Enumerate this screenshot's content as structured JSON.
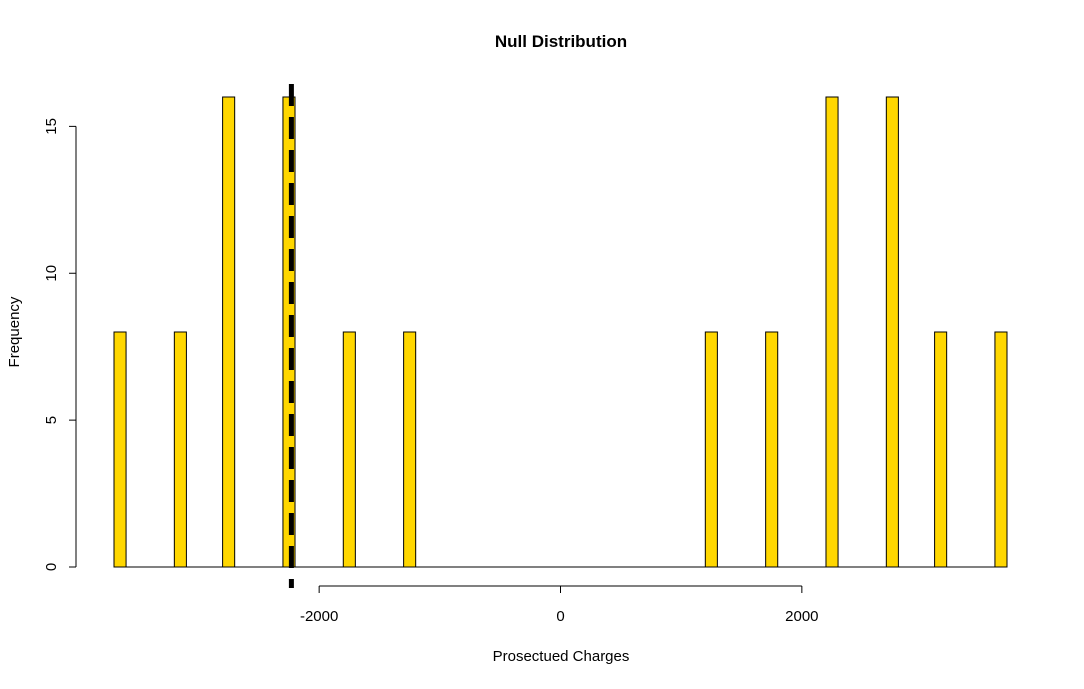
{
  "chart_data": {
    "type": "bar",
    "subtype": "histogram",
    "title": "Null Distribution",
    "xlabel": "Prosectued Charges",
    "ylabel": "Frequency",
    "xlim": [
      -3700,
      3700
    ],
    "ylim": [
      0,
      16
    ],
    "x_ticks": [
      -2000,
      0,
      2000
    ],
    "x_tick_labels": [
      "-2000",
      "0",
      "2000"
    ],
    "y_ticks": [
      0,
      5,
      10,
      15
    ],
    "y_tick_labels": [
      "0",
      "5",
      "10",
      "15"
    ],
    "bin_width": 100,
    "bins": [
      {
        "x0": -3700,
        "x1": -3600,
        "count": 8
      },
      {
        "x0": -3200,
        "x1": -3100,
        "count": 8
      },
      {
        "x0": -2800,
        "x1": -2700,
        "count": 16
      },
      {
        "x0": -2300,
        "x1": -2200,
        "count": 16
      },
      {
        "x0": -1800,
        "x1": -1700,
        "count": 8
      },
      {
        "x0": -1300,
        "x1": -1200,
        "count": 8
      },
      {
        "x0": 1200,
        "x1": 1300,
        "count": 8
      },
      {
        "x0": 1700,
        "x1": 1800,
        "count": 8
      },
      {
        "x0": 2200,
        "x1": 2300,
        "count": 16
      },
      {
        "x0": 2700,
        "x1": 2800,
        "count": 16
      },
      {
        "x0": 3100,
        "x1": 3200,
        "count": 8
      },
      {
        "x0": 3600,
        "x1": 3700,
        "count": 8
      }
    ],
    "reference_line": {
      "x": -2230,
      "style": "dashed"
    },
    "grid": false,
    "colors": {
      "bar_fill": "#FFD700",
      "bar_stroke": "#000000",
      "reference_line": "#000000"
    }
  }
}
